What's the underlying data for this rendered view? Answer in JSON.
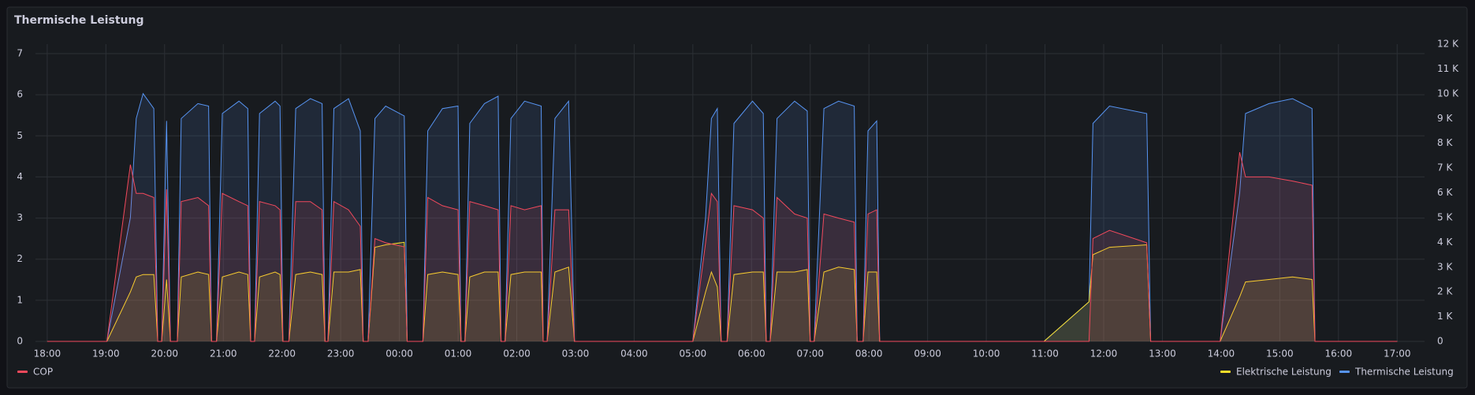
{
  "chart_data": {
    "type": "line",
    "title": "Thermische Leistung",
    "x": [
      "18:00",
      "19:01",
      "19:25",
      "19:31",
      "19:38",
      "19:49",
      "19:53",
      "19:57",
      "20:02",
      "20:06",
      "20:13",
      "20:17",
      "20:34",
      "20:45",
      "20:48",
      "20:53",
      "20:59",
      "21:16",
      "21:25",
      "21:28",
      "21:32",
      "21:37",
      "21:53",
      "21:58",
      "22:01",
      "22:07",
      "22:14",
      "22:29",
      "22:41",
      "22:44",
      "22:47",
      "22:53",
      "23:08",
      "23:20",
      "23:23",
      "23:28",
      "23:35",
      "23:46",
      "00:05",
      "00:08",
      "00:24",
      "00:29",
      "00:44",
      "01:00",
      "01:03",
      "01:07",
      "01:12",
      "01:27",
      "01:41",
      "01:44",
      "01:48",
      "01:54",
      "02:08",
      "02:25",
      "02:27",
      "02:31",
      "02:39",
      "02:53",
      "02:59",
      "05:00",
      "05:13",
      "05:19",
      "05:25",
      "05:29",
      "05:35",
      "05:42",
      "06:01",
      "06:12",
      "06:15",
      "06:19",
      "06:26",
      "06:44",
      "06:57",
      "07:00",
      "07:04",
      "07:14",
      "07:29",
      "07:45",
      "07:48",
      "07:54",
      "07:59",
      "08:08",
      "08:11",
      "10:59",
      "11:45",
      "11:49",
      "12:06",
      "12:44",
      "12:48",
      "13:59",
      "14:19",
      "14:25",
      "14:49",
      "15:13",
      "15:33",
      "15:36",
      "17:00"
    ],
    "series": [
      {
        "name": "COP",
        "color": "#f2495c",
        "axis": "y",
        "values": [
          0,
          0,
          4.3,
          3.6,
          3.6,
          3.5,
          0,
          0,
          3.7,
          0,
          0,
          3.4,
          3.5,
          3.3,
          0,
          0,
          3.6,
          3.4,
          3.3,
          0,
          0,
          3.4,
          3.3,
          3.2,
          0,
          0,
          3.4,
          3.4,
          3.2,
          0,
          0,
          3.4,
          3.2,
          2.8,
          0,
          0,
          2.5,
          2.4,
          2.3,
          0,
          0,
          3.5,
          3.3,
          3.2,
          0,
          0,
          3.4,
          3.3,
          3.2,
          0,
          0,
          3.3,
          3.2,
          3.3,
          0,
          0,
          3.2,
          3.2,
          0,
          0,
          2.4,
          3.6,
          3.4,
          0,
          0,
          3.3,
          3.2,
          3.0,
          0,
          0,
          3.5,
          3.1,
          3.0,
          0,
          0,
          3.1,
          3.0,
          2.9,
          0,
          0,
          3.1,
          3.2,
          0,
          0,
          0,
          2.5,
          2.7,
          2.4,
          0,
          0,
          4.6,
          4.0,
          4.0,
          3.9,
          3.8,
          0,
          0
        ]
      },
      {
        "name": "Elektrische Leistung",
        "color": "#fade2a",
        "axis": "y2",
        "values": [
          0,
          0,
          2000,
          2600,
          2700,
          2700,
          0,
          0,
          2500,
          0,
          0,
          2600,
          2800,
          2700,
          0,
          0,
          2600,
          2800,
          2700,
          0,
          0,
          2600,
          2800,
          2700,
          0,
          0,
          2700,
          2800,
          2700,
          0,
          0,
          2800,
          2800,
          2900,
          0,
          0,
          3800,
          3900,
          4000,
          0,
          0,
          2700,
          2800,
          2700,
          0,
          0,
          2600,
          2800,
          2800,
          0,
          0,
          2700,
          2800,
          2800,
          0,
          0,
          2800,
          3000,
          0,
          0,
          2000,
          2800,
          2200,
          0,
          0,
          2700,
          2800,
          2800,
          0,
          0,
          2800,
          2800,
          2900,
          0,
          0,
          2800,
          3000,
          2900,
          0,
          0,
          2800,
          2800,
          0,
          0,
          1600,
          3500,
          3800,
          3900,
          0,
          0,
          1800,
          2400,
          2500,
          2600,
          2500,
          0,
          0
        ]
      },
      {
        "name": "Thermische Leistung",
        "color": "#5794f2",
        "axis": "y2",
        "values": [
          0,
          0,
          5000,
          9000,
          10000,
          9400,
          0,
          0,
          8900,
          0,
          0,
          9000,
          9600,
          9500,
          0,
          0,
          9200,
          9700,
          9400,
          0,
          0,
          9200,
          9700,
          9500,
          0,
          0,
          9400,
          9800,
          9600,
          0,
          0,
          9400,
          9800,
          8500,
          0,
          0,
          9000,
          9500,
          9100,
          0,
          0,
          8500,
          9400,
          9500,
          0,
          0,
          8800,
          9600,
          9900,
          0,
          0,
          9000,
          9700,
          9500,
          0,
          0,
          9000,
          9700,
          0,
          0,
          5000,
          9000,
          9400,
          0,
          0,
          8800,
          9700,
          9200,
          0,
          0,
          9000,
          9700,
          9300,
          0,
          0,
          9400,
          9700,
          9500,
          0,
          0,
          8500,
          8900,
          0,
          0,
          1600,
          8800,
          9500,
          9200,
          0,
          0,
          6000,
          9200,
          9600,
          9800,
          9400,
          0,
          0
        ]
      }
    ],
    "xlim": [
      "17:48",
      "17:28"
    ],
    "xticks": [
      "18:00",
      "19:00",
      "20:00",
      "21:00",
      "22:00",
      "23:00",
      "00:00",
      "01:00",
      "02:00",
      "03:00",
      "04:00",
      "05:00",
      "06:00",
      "07:00",
      "08:00",
      "09:00",
      "10:00",
      "11:00",
      "12:00",
      "13:00",
      "14:00",
      "15:00",
      "16:00",
      "17:00"
    ],
    "ylim": [
      0,
      7.23
    ],
    "yticks": [
      0,
      1,
      2,
      3,
      4,
      5,
      6,
      7
    ],
    "y2lim": [
      0,
      12000
    ],
    "y2ticks": [
      0,
      {
        "value": 1000,
        "label": "1 K"
      },
      {
        "value": 2000,
        "label": "2 K"
      },
      {
        "value": 3000,
        "label": "3 K"
      },
      {
        "value": 4000,
        "label": "4 K"
      },
      {
        "value": 5000,
        "label": "5 K"
      },
      {
        "value": 6000,
        "label": "6 K"
      },
      {
        "value": 7000,
        "label": "7 K"
      },
      {
        "value": 8000,
        "label": "8 K"
      },
      {
        "value": 9000,
        "label": "9 K"
      },
      {
        "value": 10000,
        "label": "10 K"
      },
      {
        "value": 11000,
        "label": "11 K"
      },
      {
        "value": 12000,
        "label": "12 K"
      }
    ],
    "grid": true
  }
}
